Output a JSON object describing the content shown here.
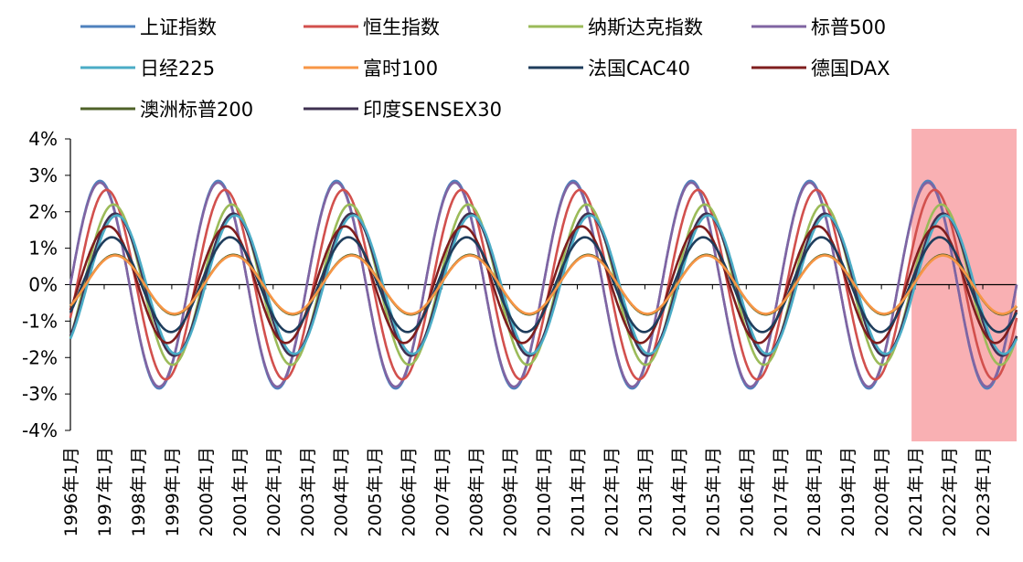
{
  "chart_data": {
    "type": "line",
    "title": "",
    "xlabel": "",
    "ylabel": "",
    "ylim": [
      -0.04,
      0.04
    ],
    "y_ticks": [
      "4%",
      "3%",
      "2%",
      "1%",
      "0%",
      "-1%",
      "-2%",
      "-3%",
      "-4%"
    ],
    "y_tick_values": [
      0.04,
      0.03,
      0.02,
      0.01,
      0,
      -0.01,
      -0.02,
      -0.03,
      -0.04
    ],
    "x_labels": [
      "1996年1月",
      "1997年1月",
      "1998年1月",
      "1999年1月",
      "2000年1月",
      "2001年1月",
      "2002年1月",
      "2003年1月",
      "2004年1月",
      "2005年1月",
      "2006年1月",
      "2007年1月",
      "2008年1月",
      "2009年1月",
      "2010年1月",
      "2011年1月",
      "2012年1月",
      "2013年1月",
      "2014年1月",
      "2015年1月",
      "2016年1月",
      "2017年1月",
      "2018年1月",
      "2019年1月",
      "2020年1月",
      "2021年1月",
      "2022年1月",
      "2023年1月"
    ],
    "x_range_years": [
      1996.0,
      2024.0
    ],
    "highlight": {
      "start_year": 2021.0,
      "end_year": 2024.0,
      "color": "#f9b0b3"
    },
    "cycle_years": 3.5,
    "series": [
      {
        "name": "上证指数",
        "color": "#4f81bd",
        "amplitude": 0.0285,
        "phase_years": 0.0
      },
      {
        "name": "恒生指数",
        "color": "#d2504d",
        "amplitude": 0.026,
        "phase_years": 0.2
      },
      {
        "name": "纳斯达克指数",
        "color": "#9bbb59",
        "amplitude": 0.022,
        "phase_years": 0.4
      },
      {
        "name": "标普500",
        "color": "#8064a2",
        "amplitude": 0.028,
        "phase_years": 0.0
      },
      {
        "name": "日经225",
        "color": "#4bacc6",
        "amplitude": 0.019,
        "phase_years": 0.5
      },
      {
        "name": "富时100",
        "color": "#f79646",
        "amplitude": 0.008,
        "phase_years": 0.45
      },
      {
        "name": "法国CAC40",
        "color": "#1f3d5c",
        "amplitude": 0.013,
        "phase_years": 0.35
      },
      {
        "name": "德国DAX",
        "color": "#7f1e1e",
        "amplitude": 0.016,
        "phase_years": 0.25
      },
      {
        "name": "澳洲标普200",
        "color": "#4f6228",
        "amplitude": 0.0082,
        "phase_years": 0.45
      },
      {
        "name": "印度SENSEX30",
        "color": "#3f3151",
        "amplitude": 0.0195,
        "phase_years": 0.45
      }
    ],
    "legend_position": "top"
  }
}
